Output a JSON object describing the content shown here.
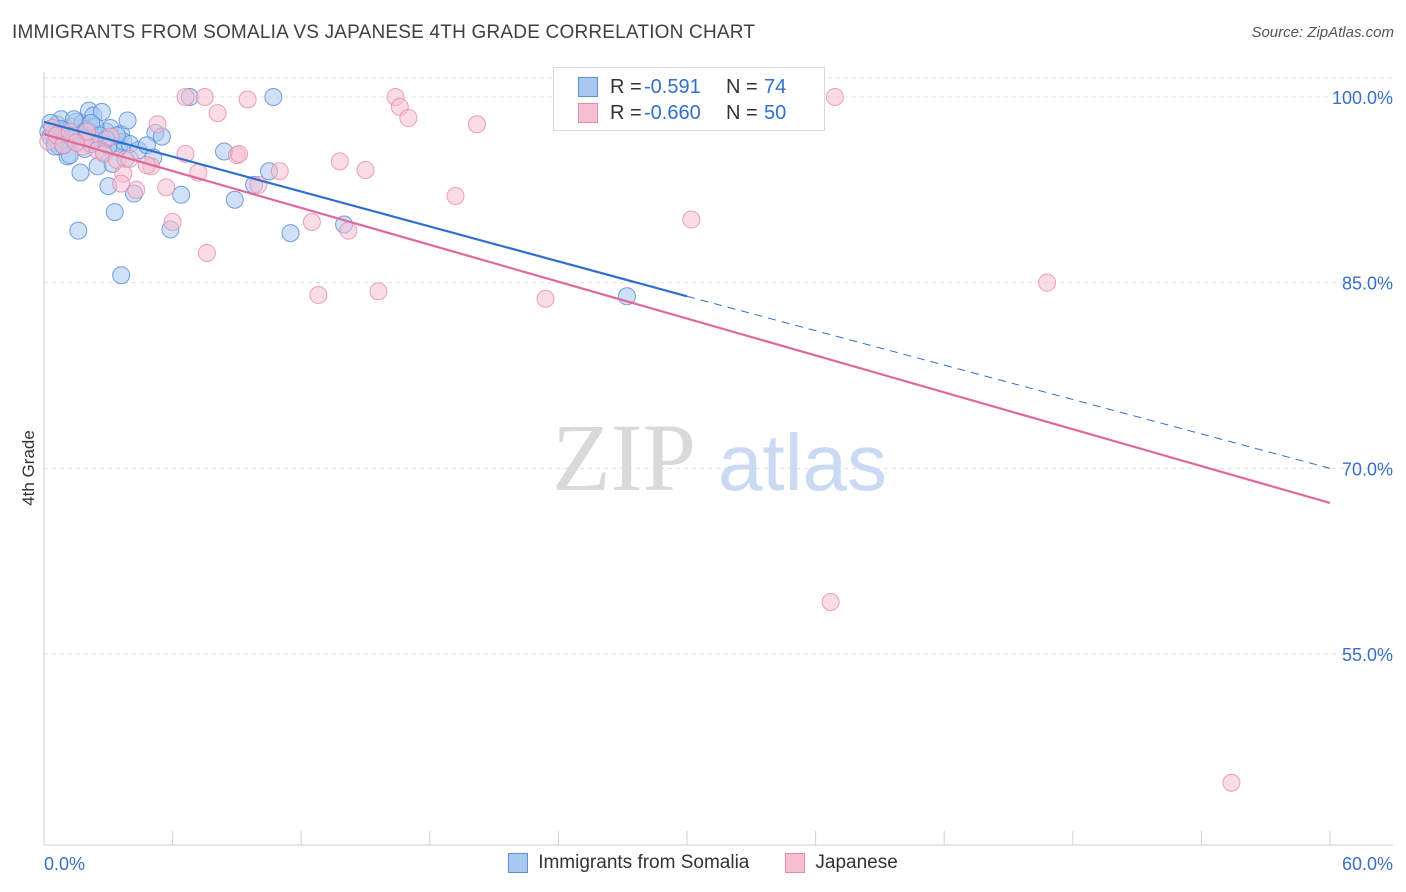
{
  "title": "IMMIGRANTS FROM SOMALIA VS JAPANESE 4TH GRADE CORRELATION CHART",
  "source": "Source: ZipAtlas.com",
  "watermark": {
    "zip": "ZIP",
    "atlas": "atlas"
  },
  "colors": {
    "somalia_fill": "#a9c8f0",
    "somalia_stroke": "#5b8fd6",
    "somalia_line": "#2f6fcf",
    "japanese_fill": "#f6c0d2",
    "japanese_stroke": "#e88aab",
    "japanese_line": "#e0699a",
    "tick_label": "#3a6fc7",
    "grid": "#e0e0e0"
  },
  "legend_top": [
    {
      "r_label": "R =",
      "r_value": "-0.591",
      "n_label": "N =",
      "n_value": "74"
    },
    {
      "r_label": "R =",
      "r_value": "-0.660",
      "n_label": "N =",
      "n_value": "50"
    }
  ],
  "chart_data": {
    "type": "scatter",
    "title": "IMMIGRANTS FROM SOMALIA VS JAPANESE 4TH GRADE CORRELATION CHART",
    "xlabel": "",
    "ylabel": "4th Grade",
    "xlim": [
      0,
      60
    ],
    "ylim": [
      40,
      101.5
    ],
    "x_tick_labels": [
      "0.0%",
      "60.0%"
    ],
    "y_ticks": [
      55,
      70,
      85,
      100
    ],
    "y_tick_labels": [
      "55.0%",
      "70.0%",
      "85.0%",
      "100.0%"
    ],
    "grid": true,
    "legend": "bottom-center",
    "series": [
      {
        "name": "Immigrants from Somalia",
        "trend": {
          "x0": 0,
          "y0": 98.0,
          "x1": 30,
          "y1": 83.9,
          "dash_to_x": 60,
          "dash_to_y": 70.0
        },
        "points": [
          [
            0.2,
            97.2
          ],
          [
            0.3,
            96.8
          ],
          [
            0.4,
            97.5
          ],
          [
            0.5,
            96.3
          ],
          [
            0.6,
            97.8
          ],
          [
            0.7,
            96.0
          ],
          [
            0.8,
            98.2
          ],
          [
            0.9,
            96.6
          ],
          [
            1.0,
            97.3
          ],
          [
            1.1,
            95.2
          ],
          [
            1.2,
            96.9
          ],
          [
            1.3,
            97.6
          ],
          [
            1.4,
            96.4
          ],
          [
            1.5,
            98.0
          ],
          [
            1.6,
            97.1
          ],
          [
            1.7,
            96.5
          ],
          [
            1.8,
            97.9
          ],
          [
            1.9,
            95.8
          ],
          [
            2.0,
            97.4
          ],
          [
            2.1,
            98.9
          ],
          [
            2.2,
            96.2
          ],
          [
            2.3,
            98.5
          ],
          [
            2.4,
            97.0
          ],
          [
            2.5,
            94.4
          ],
          [
            2.6,
            96.7
          ],
          [
            2.7,
            98.8
          ],
          [
            2.8,
            95.5
          ],
          [
            2.9,
            97.2
          ],
          [
            3.0,
            92.8
          ],
          [
            3.1,
            97.5
          ],
          [
            3.2,
            94.6
          ],
          [
            3.3,
            96.3
          ],
          [
            3.5,
            95.9
          ],
          [
            3.6,
            97.0
          ],
          [
            3.7,
            96.4
          ],
          [
            3.8,
            95.0
          ],
          [
            3.9,
            98.1
          ],
          [
            4.0,
            96.2
          ],
          [
            4.2,
            92.2
          ],
          [
            4.4,
            95.7
          ],
          [
            5.2,
            97.1
          ],
          [
            5.5,
            96.8
          ],
          [
            5.9,
            89.3
          ],
          [
            6.4,
            92.1
          ],
          [
            6.8,
            100.0
          ],
          [
            8.4,
            95.6
          ],
          [
            8.9,
            91.7
          ],
          [
            9.8,
            92.9
          ],
          [
            10.5,
            94.0
          ],
          [
            10.7,
            100.0
          ],
          [
            11.5,
            89.0
          ],
          [
            14.0,
            89.7
          ],
          [
            27.2,
            83.9
          ],
          [
            0.5,
            96.0
          ],
          [
            1.0,
            97.0
          ],
          [
            1.4,
            98.2
          ],
          [
            1.7,
            93.9
          ],
          [
            2.0,
            96.8
          ],
          [
            2.4,
            97.6
          ],
          [
            3.3,
            90.7
          ],
          [
            3.6,
            85.6
          ],
          [
            1.2,
            95.3
          ],
          [
            1.6,
            89.2
          ],
          [
            0.8,
            97.4
          ],
          [
            0.9,
            96.1
          ],
          [
            1.3,
            96.7
          ],
          [
            2.2,
            97.9
          ],
          [
            2.6,
            96.9
          ],
          [
            3.0,
            96.0
          ],
          [
            3.4,
            96.9
          ],
          [
            4.8,
            96.1
          ],
          [
            5.1,
            95.1
          ],
          [
            0.3,
            97.9
          ],
          [
            2.9,
            96.6
          ]
        ]
      },
      {
        "name": "Japanese",
        "trend": {
          "x0": 0,
          "y0": 97.0,
          "x1": 60,
          "y1": 67.2
        },
        "points": [
          [
            0.2,
            96.4
          ],
          [
            0.4,
            97.5
          ],
          [
            0.6,
            96.9
          ],
          [
            0.9,
            96.1
          ],
          [
            1.2,
            97.2
          ],
          [
            1.8,
            96.0
          ],
          [
            2.2,
            96.6
          ],
          [
            2.5,
            95.7
          ],
          [
            2.8,
            95.4
          ],
          [
            3.1,
            96.8
          ],
          [
            3.4,
            94.9
          ],
          [
            3.7,
            93.8
          ],
          [
            4.0,
            95.0
          ],
          [
            4.3,
            92.5
          ],
          [
            5.0,
            94.4
          ],
          [
            5.3,
            97.8
          ],
          [
            5.7,
            92.7
          ],
          [
            6.0,
            89.9
          ],
          [
            6.6,
            95.4
          ],
          [
            7.2,
            93.9
          ],
          [
            7.6,
            87.4
          ],
          [
            8.1,
            98.7
          ],
          [
            9.0,
            95.3
          ],
          [
            9.5,
            99.8
          ],
          [
            10.0,
            92.9
          ],
          [
            11.0,
            94.0
          ],
          [
            12.5,
            89.9
          ],
          [
            13.8,
            94.8
          ],
          [
            14.2,
            89.2
          ],
          [
            15.0,
            94.1
          ],
          [
            15.6,
            84.3
          ],
          [
            16.4,
            100.0
          ],
          [
            16.6,
            99.2
          ],
          [
            17.0,
            98.3
          ],
          [
            19.2,
            92.0
          ],
          [
            20.2,
            97.8
          ],
          [
            23.4,
            83.7
          ],
          [
            30.2,
            90.1
          ],
          [
            36.9,
            100.0
          ],
          [
            46.8,
            85.0
          ],
          [
            36.7,
            59.2
          ],
          [
            55.4,
            44.6
          ],
          [
            6.6,
            100.0
          ],
          [
            7.5,
            100.0
          ],
          [
            3.6,
            93.0
          ],
          [
            2.0,
            97.2
          ],
          [
            1.5,
            96.3
          ],
          [
            12.8,
            84.0
          ],
          [
            9.1,
            95.4
          ],
          [
            4.8,
            94.5
          ]
        ]
      }
    ]
  }
}
